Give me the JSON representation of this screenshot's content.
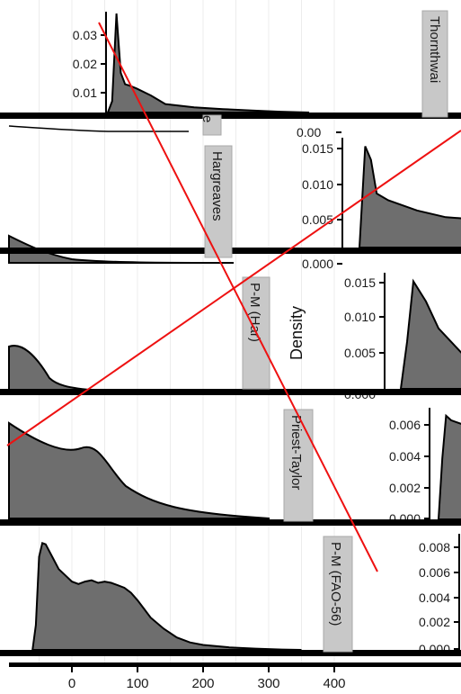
{
  "colors": {
    "density_fill": "#6e6e6e",
    "outline": "#000000",
    "strip_fill": "#c8c8c8",
    "overlay_lines": "#ee1111"
  },
  "chart_data": {
    "type": "area",
    "ylabel": "Density",
    "x_ticks": [
      "0",
      "100",
      "200",
      "300",
      "400"
    ],
    "x_tick_values": [
      0,
      100,
      200,
      300,
      400
    ],
    "grid": true,
    "panels": [
      {
        "name": "Thornthwaite",
        "strip_label": "Thornthwai",
        "y_ticks": [
          "0.01",
          "0.02",
          "0.03"
        ],
        "y_tick_values": [
          0.01,
          0.02,
          0.03
        ],
        "density_x": [
          80,
          83,
          86,
          89,
          92,
          95,
          100,
          110,
          120,
          140,
          160,
          180,
          200,
          220
        ],
        "density_y": [
          0,
          0.004,
          0.035,
          0.014,
          0.01,
          0.0095,
          0.0085,
          0.006,
          0.003,
          0.0018,
          0.0012,
          0.0007,
          0.0003,
          0
        ],
        "series_right_baseline": "0.00"
      },
      {
        "name": "Hargreaves",
        "strip_label": "Hargreaves",
        "y_ticks": [
          "0.000",
          "0.005",
          "0.010",
          "0.015"
        ],
        "y_tick_values": [
          0,
          0.005,
          0.01,
          0.015
        ],
        "density_x": [
          0,
          4,
          8,
          12,
          20,
          40,
          60,
          80,
          100,
          120,
          140
        ],
        "density_y": [
          0,
          0.015,
          0.013,
          0.008,
          0.007,
          0.0055,
          0.0045,
          0.0042,
          0.0038,
          0.002,
          0
        ]
      },
      {
        "name": "P-M (Har)",
        "strip_label": "P-M (Har)",
        "y_ticks": [
          "0.000",
          "0.005",
          "0.010",
          "0.015"
        ],
        "y_tick_values": [
          0,
          0.005,
          0.01,
          0.015
        ],
        "density_x": [
          0,
          5,
          10,
          20,
          30,
          50,
          70,
          90
        ],
        "density_y": [
          0,
          0.007,
          0.016,
          0.013,
          0.009,
          0.005,
          0.001,
          0
        ]
      },
      {
        "name": "Priest-Taylor",
        "strip_label": "Priest-Taylor",
        "y_ticks": [
          "0.000",
          "0.002",
          "0.004",
          "0.006"
        ],
        "y_tick_values": [
          0,
          0.002,
          0.004,
          0.006
        ],
        "density_x": [
          0,
          3,
          6,
          10,
          20
        ],
        "density_y": [
          0,
          0.004,
          0.0068,
          0.0065,
          0.0062
        ]
      },
      {
        "name": "P-M (FAO-56)",
        "strip_label": "P-M (FAO-56)",
        "y_ticks": [
          "0.000",
          "0.002",
          "0.004",
          "0.006",
          "0.008"
        ],
        "y_tick_values": [
          0,
          0.002,
          0.004,
          0.006,
          0.008
        ],
        "density_x": [
          -60,
          -55,
          -50,
          -45,
          -40,
          -30,
          -20,
          -10,
          0,
          10,
          20,
          30,
          40,
          50,
          60,
          70,
          80,
          90,
          100,
          110,
          120,
          140,
          160,
          180,
          200,
          240,
          280,
          320,
          350
        ],
        "density_y": [
          0,
          0.002,
          0.0075,
          0.0086,
          0.0085,
          0.0075,
          0.0065,
          0.006,
          0.0055,
          0.0053,
          0.0055,
          0.0056,
          0.0054,
          0.0055,
          0.0054,
          0.0052,
          0.005,
          0.0046,
          0.004,
          0.0033,
          0.0026,
          0.0017,
          0.001,
          0.0006,
          0.0004,
          0.0002,
          0.0001,
          3e-05,
          0
        ]
      }
    ]
  }
}
